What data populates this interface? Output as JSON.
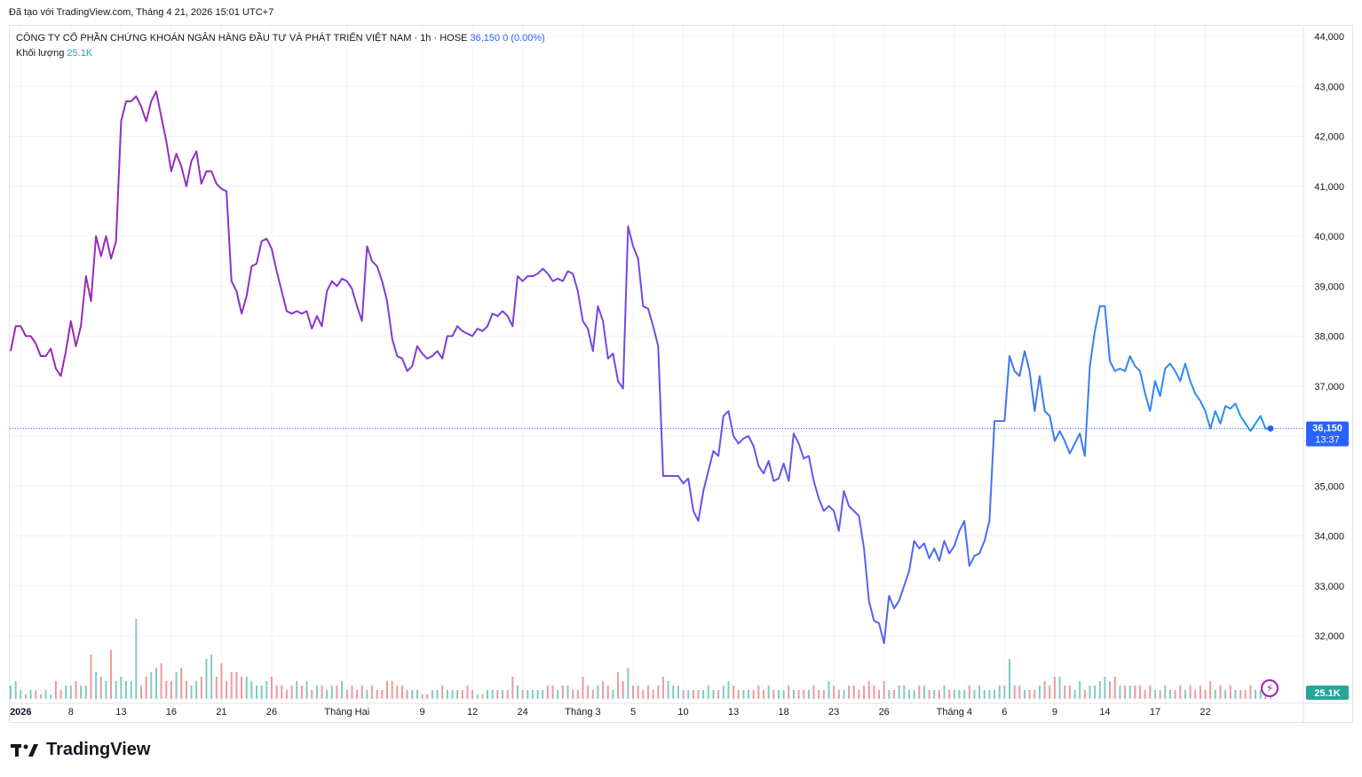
{
  "header": {
    "text": "Đã tạo với TradingView.com, Tháng 4 21, 2026 15:01 UTC+7"
  },
  "legend": {
    "symbol": "CÔNG TY CỔ PHẦN CHỨNG KHOÁN NGÂN HÀNG ĐẦU TƯ VÀ PHÁT TRIỂN VIỆT NAM · 1h · HOSE",
    "price": "36,150",
    "change": "0 (0.00%)",
    "volume_label": "Khối lượng",
    "volume_value": "25.1K"
  },
  "logo": {
    "text": "TradingView"
  },
  "colors": {
    "line_start": "#9c27b0",
    "line_end": "#2196f3",
    "vol_up": "#80cbc4",
    "vol_down": "#ef9a9a",
    "price_label_bg": "#2962ff",
    "vol_label_bg": "#26a69a"
  },
  "chart_data": {
    "type": "line",
    "ylim": [
      31000,
      44000
    ],
    "y_ticks": [
      "44,000",
      "43,000",
      "42,000",
      "41,000",
      "40,000",
      "39,000",
      "38,000",
      "37,000",
      "36,000",
      "35,000",
      "34,000",
      "33,000",
      "32,000"
    ],
    "y_tick_values": [
      44000,
      43000,
      42000,
      41000,
      40000,
      39000,
      38000,
      37000,
      36000,
      35000,
      34000,
      33000,
      32000
    ],
    "x_ticks": [
      {
        "label": "2026",
        "i": 2,
        "bold": true
      },
      {
        "label": "8",
        "i": 12
      },
      {
        "label": "13",
        "i": 22
      },
      {
        "label": "16",
        "i": 32
      },
      {
        "label": "21",
        "i": 42
      },
      {
        "label": "26",
        "i": 52
      },
      {
        "label": "Tháng Hai",
        "i": 67
      },
      {
        "label": "9",
        "i": 82
      },
      {
        "label": "12",
        "i": 92
      },
      {
        "label": "24",
        "i": 102
      },
      {
        "label": "Tháng 3",
        "i": 114
      },
      {
        "label": "5",
        "i": 124
      },
      {
        "label": "10",
        "i": 134
      },
      {
        "label": "13",
        "i": 144
      },
      {
        "label": "18",
        "i": 154
      },
      {
        "label": "23",
        "i": 164
      },
      {
        "label": "26",
        "i": 174
      },
      {
        "label": "Tháng 4",
        "i": 188
      },
      {
        "label": "6",
        "i": 198
      },
      {
        "label": "9",
        "i": 208
      },
      {
        "label": "14",
        "i": 218
      },
      {
        "label": "17",
        "i": 228
      },
      {
        "label": "22",
        "i": 238
      }
    ],
    "price_points": [
      37700,
      38200,
      38200,
      38000,
      38000,
      37850,
      37600,
      37600,
      37750,
      37350,
      37200,
      37700,
      38300,
      37800,
      38200,
      39200,
      38700,
      40000,
      39600,
      40000,
      39550,
      39900,
      42300,
      42700,
      42700,
      42800,
      42600,
      42300,
      42700,
      42900,
      42400,
      41900,
      41300,
      41650,
      41400,
      41000,
      41500,
      41700,
      41050,
      41300,
      41300,
      41050,
      40950,
      40900,
      39100,
      38900,
      38450,
      38800,
      39400,
      39450,
      39900,
      39950,
      39750,
      39300,
      38900,
      38500,
      38450,
      38500,
      38450,
      38500,
      38150,
      38400,
      38200,
      38900,
      39100,
      39000,
      39150,
      39100,
      38950,
      38600,
      38300,
      39800,
      39500,
      39400,
      39100,
      38700,
      37950,
      37600,
      37550,
      37300,
      37400,
      37800,
      37650,
      37550,
      37600,
      37700,
      37550,
      38000,
      38000,
      38200,
      38100,
      38050,
      38000,
      38150,
      38100,
      38200,
      38450,
      38400,
      38500,
      38400,
      38200,
      39200,
      39100,
      39200,
      39200,
      39250,
      39350,
      39250,
      39100,
      39150,
      39100,
      39300,
      39250,
      38900,
      38300,
      38150,
      37700,
      38600,
      38300,
      37550,
      37650,
      37100,
      36950,
      40200,
      39800,
      39550,
      38600,
      38550,
      38200,
      37800,
      35200,
      35200,
      35200,
      35200,
      35050,
      35150,
      34500,
      34300,
      34900,
      35300,
      35700,
      35600,
      36400,
      36500,
      36000,
      35850,
      35950,
      36000,
      35800,
      35400,
      35250,
      35500,
      35100,
      35150,
      35450,
      35100,
      36050,
      35850,
      35550,
      35600,
      35100,
      34750,
      34500,
      34600,
      34500,
      34100,
      34900,
      34600,
      34500,
      34400,
      33750,
      32700,
      32300,
      32250,
      31850,
      32800,
      32550,
      32700,
      33000,
      33300,
      33900,
      33750,
      33850,
      33550,
      33750,
      33500,
      33900,
      33650,
      33800,
      34100,
      34300,
      33400,
      33600,
      33650,
      33900,
      34300,
      36300,
      36300,
      36300,
      37600,
      37300,
      37200,
      37700,
      37300,
      36500,
      37200,
      36500,
      36400,
      35900,
      36100,
      35900,
      35650,
      35850,
      36050,
      35600,
      37400,
      38100,
      38600,
      38600,
      37500,
      37300,
      37350,
      37300,
      37600,
      37400,
      37300,
      36850,
      36500,
      37100,
      36800,
      37350,
      37450,
      37300,
      37100,
      37450,
      37100,
      36850,
      36700,
      36500,
      36150,
      36500,
      36250,
      36600,
      36550,
      36650,
      36400,
      36250,
      36100,
      36250,
      36400,
      36150,
      36150
    ],
    "volume_points": [
      3,
      4,
      2,
      1,
      2,
      2,
      1,
      2,
      1,
      4,
      2,
      3,
      3,
      4,
      3,
      3,
      10,
      6,
      5,
      4,
      11,
      4,
      5,
      4,
      4,
      18,
      3,
      5,
      6,
      7,
      8,
      4,
      4,
      6,
      7,
      4,
      3,
      4,
      5,
      9,
      10,
      5,
      8,
      4,
      6,
      6,
      5,
      5,
      4,
      3,
      3,
      4,
      5,
      3,
      3,
      2,
      3,
      4,
      3,
      4,
      2,
      3,
      3,
      2,
      3,
      3,
      4,
      2,
      3,
      2,
      3,
      2,
      3,
      2,
      2,
      4,
      4,
      3,
      3,
      2,
      2,
      2,
      1,
      1,
      2,
      2,
      3,
      2,
      2,
      2,
      2,
      3,
      2,
      1,
      1,
      2,
      2,
      2,
      2,
      2,
      5,
      3,
      2,
      2,
      2,
      2,
      2,
      3,
      3,
      2,
      3,
      3,
      2,
      2,
      5,
      3,
      2,
      3,
      4,
      3,
      2,
      6,
      4,
      7,
      3,
      3,
      2,
      3,
      2,
      3,
      5,
      4,
      3,
      3,
      2,
      2,
      2,
      2,
      2,
      3,
      2,
      2,
      3,
      4,
      3,
      2,
      2,
      2,
      2,
      3,
      2,
      3,
      2,
      2,
      2,
      3,
      2,
      2,
      2,
      2,
      3,
      2,
      2,
      4,
      3,
      2,
      2,
      3,
      3,
      2,
      3,
      4,
      3,
      2,
      4,
      2,
      2,
      3,
      3,
      2,
      2,
      3,
      3,
      2,
      2,
      2,
      3,
      2,
      2,
      2,
      2,
      3,
      2,
      3,
      2,
      2,
      2,
      3,
      3,
      9,
      3,
      3,
      2,
      2,
      2,
      3,
      4,
      3,
      5,
      5,
      3,
      3,
      2,
      4,
      2,
      3,
      3,
      4,
      5,
      4,
      5,
      3,
      3,
      3,
      3,
      3,
      2,
      3,
      2,
      2,
      3,
      2,
      2,
      3,
      2,
      3,
      2,
      3,
      2,
      4,
      2,
      3,
      2,
      3,
      2,
      2,
      2,
      3,
      2,
      2,
      2,
      3
    ],
    "volume_ylim": [
      0,
      40
    ]
  },
  "axis_labels": {
    "last_price": "36,150",
    "last_time": "13:37",
    "last_volume": "25.1K"
  }
}
